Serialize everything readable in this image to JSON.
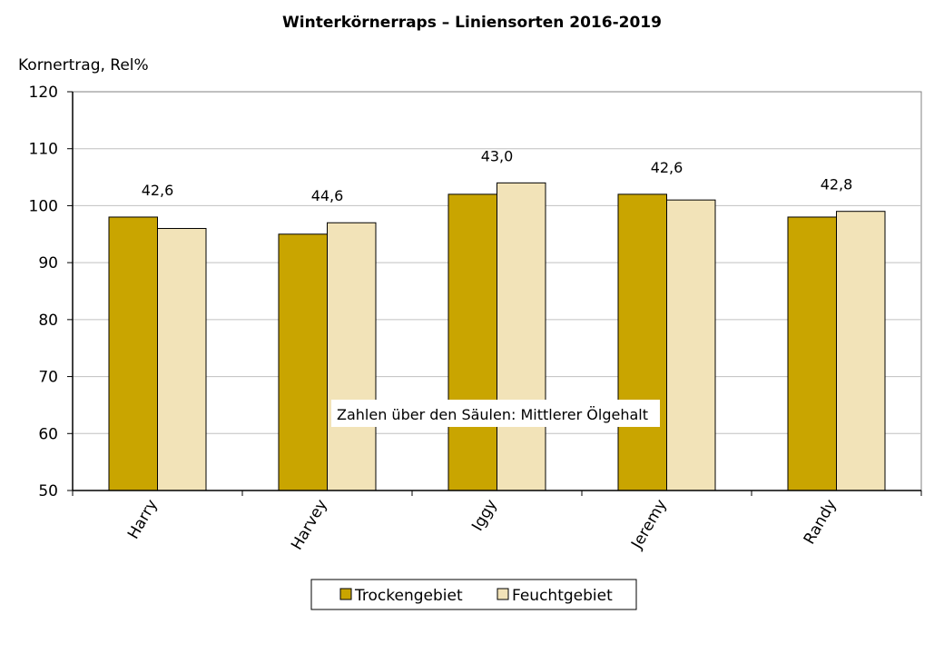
{
  "chart_data": {
    "type": "bar",
    "title": "Winterkörnerraps – Liniensorten 2016-2019",
    "ylabel": "Kornertrag, Rel%",
    "xlabel": "",
    "ylim": [
      50,
      120
    ],
    "yticks": [
      50,
      60,
      70,
      80,
      90,
      100,
      110,
      120
    ],
    "grid": true,
    "categories": [
      "Harry",
      "Harvey",
      "Iggy",
      "Jeremy",
      "Randy"
    ],
    "series": [
      {
        "name": "Trockengebiet",
        "color": "#c9a500",
        "values": [
          98,
          95,
          102,
          102,
          98
        ]
      },
      {
        "name": "Feuchtgebiet",
        "color": "#f2e3b8",
        "values": [
          96,
          97,
          104,
          101,
          99
        ]
      }
    ],
    "bar_labels": [
      "42,6",
      "44,6",
      "43,0",
      "42,6",
      "42,8"
    ],
    "annotation": "Zahlen über den Säulen: Mittlerer Ölgehalt",
    "legend_position": "bottom-center"
  }
}
